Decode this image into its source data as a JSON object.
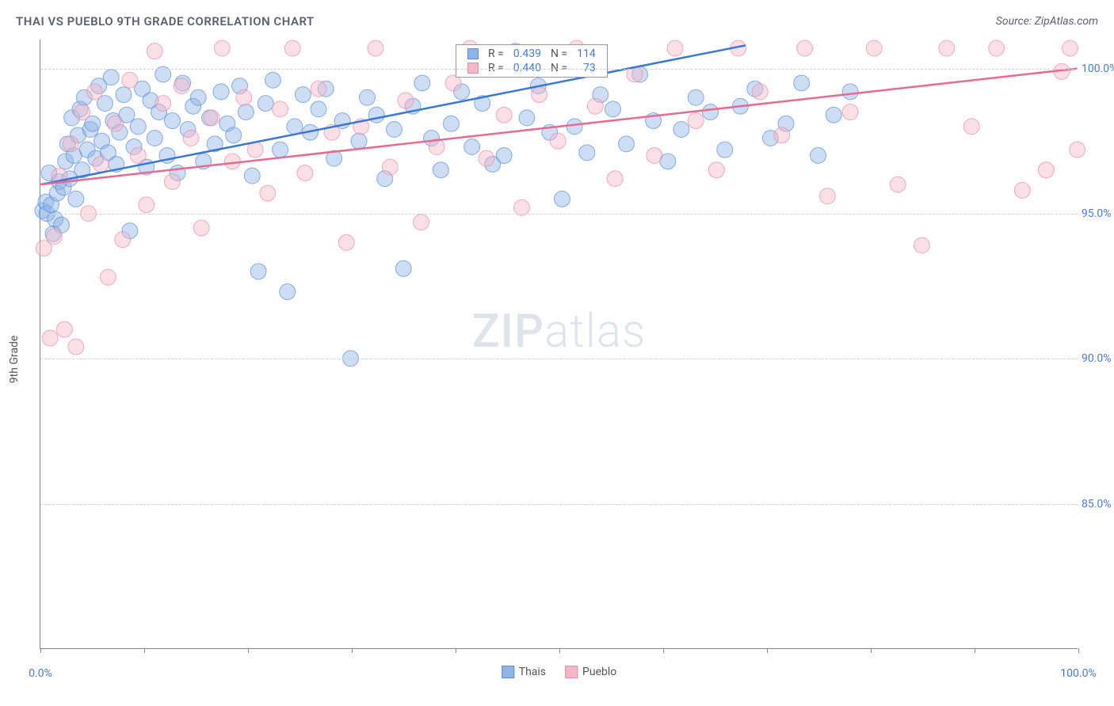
{
  "header": {
    "title": "THAI VS PUEBLO 9TH GRADE CORRELATION CHART",
    "source": "Source: ZipAtlas.com"
  },
  "watermark": {
    "bold": "ZIP",
    "light": "atlas"
  },
  "chart": {
    "type": "scatter",
    "y_axis_title": "9th Grade",
    "xlim": [
      0,
      100
    ],
    "ylim": [
      80,
      101
    ],
    "x_ticks": [
      0,
      10,
      20,
      30,
      40,
      50,
      60,
      70,
      80,
      90,
      100
    ],
    "x_tick_labels": {
      "0": "0.0%",
      "100": "100.0%"
    },
    "y_ticks": [
      85,
      90,
      95,
      100
    ],
    "y_tick_labels": {
      "85": "85.0%",
      "90": "90.0%",
      "95": "95.0%",
      "100": "100.0%"
    },
    "grid_color": "#d0d0d0",
    "background_color": "#ffffff",
    "marker_radius": 10,
    "marker_opacity": 0.45,
    "line_width": 2.5,
    "series": [
      {
        "name": "Thais",
        "fill_color": "#8fb4e6",
        "stroke_color": "#5a8fd8",
        "line_color": "#3a78d8",
        "R": "0.439",
        "N": "114",
        "trend": {
          "x1": 0,
          "y1": 96.0,
          "x2": 68,
          "y2": 100.8
        },
        "points": [
          [
            0.2,
            95.1
          ],
          [
            0.5,
            95.4
          ],
          [
            0.6,
            95.0
          ],
          [
            0.8,
            96.4
          ],
          [
            1.0,
            95.3
          ],
          [
            1.2,
            94.3
          ],
          [
            1.4,
            94.8
          ],
          [
            1.6,
            95.7
          ],
          [
            1.8,
            96.1
          ],
          [
            2.0,
            94.6
          ],
          [
            2.2,
            95.9
          ],
          [
            2.4,
            96.8
          ],
          [
            2.6,
            97.4
          ],
          [
            2.8,
            96.2
          ],
          [
            3.0,
            98.3
          ],
          [
            3.2,
            97.0
          ],
          [
            3.4,
            95.5
          ],
          [
            3.6,
            97.7
          ],
          [
            3.8,
            98.6
          ],
          [
            4.0,
            96.5
          ],
          [
            4.2,
            99.0
          ],
          [
            4.5,
            97.2
          ],
          [
            4.8,
            97.9
          ],
          [
            5.0,
            98.1
          ],
          [
            5.3,
            96.9
          ],
          [
            5.6,
            99.4
          ],
          [
            5.9,
            97.5
          ],
          [
            6.2,
            98.8
          ],
          [
            6.5,
            97.1
          ],
          [
            6.8,
            99.7
          ],
          [
            7.0,
            98.2
          ],
          [
            7.3,
            96.7
          ],
          [
            7.6,
            97.8
          ],
          [
            8.0,
            99.1
          ],
          [
            8.3,
            98.4
          ],
          [
            8.6,
            94.4
          ],
          [
            9.0,
            97.3
          ],
          [
            9.4,
            98.0
          ],
          [
            9.8,
            99.3
          ],
          [
            10.2,
            96.6
          ],
          [
            10.6,
            98.9
          ],
          [
            11.0,
            97.6
          ],
          [
            11.4,
            98.5
          ],
          [
            11.8,
            99.8
          ],
          [
            12.2,
            97.0
          ],
          [
            12.7,
            98.2
          ],
          [
            13.2,
            96.4
          ],
          [
            13.7,
            99.5
          ],
          [
            14.2,
            97.9
          ],
          [
            14.7,
            98.7
          ],
          [
            15.2,
            99.0
          ],
          [
            15.7,
            96.8
          ],
          [
            16.3,
            98.3
          ],
          [
            16.8,
            97.4
          ],
          [
            17.4,
            99.2
          ],
          [
            18.0,
            98.1
          ],
          [
            18.6,
            97.7
          ],
          [
            19.2,
            99.4
          ],
          [
            19.8,
            98.5
          ],
          [
            20.4,
            96.3
          ],
          [
            21.0,
            93.0
          ],
          [
            21.7,
            98.8
          ],
          [
            22.4,
            99.6
          ],
          [
            23.1,
            97.2
          ],
          [
            23.8,
            92.3
          ],
          [
            24.5,
            98.0
          ],
          [
            25.3,
            99.1
          ],
          [
            26.0,
            97.8
          ],
          [
            26.8,
            98.6
          ],
          [
            27.5,
            99.3
          ],
          [
            28.3,
            96.9
          ],
          [
            29.1,
            98.2
          ],
          [
            29.9,
            90.0
          ],
          [
            30.7,
            97.5
          ],
          [
            31.5,
            99.0
          ],
          [
            32.4,
            98.4
          ],
          [
            33.2,
            96.2
          ],
          [
            34.1,
            97.9
          ],
          [
            35.0,
            93.1
          ],
          [
            35.9,
            98.7
          ],
          [
            36.8,
            99.5
          ],
          [
            37.7,
            97.6
          ],
          [
            38.6,
            96.5
          ],
          [
            39.6,
            98.1
          ],
          [
            40.6,
            99.2
          ],
          [
            41.6,
            97.3
          ],
          [
            42.6,
            98.8
          ],
          [
            43.6,
            96.7
          ],
          [
            44.7,
            97.0
          ],
          [
            45.8,
            100.6
          ],
          [
            46.9,
            98.3
          ],
          [
            48.0,
            99.4
          ],
          [
            49.1,
            97.8
          ],
          [
            50.3,
            95.5
          ],
          [
            51.5,
            98.0
          ],
          [
            52.7,
            97.1
          ],
          [
            54.0,
            99.1
          ],
          [
            55.2,
            98.6
          ],
          [
            56.5,
            97.4
          ],
          [
            57.8,
            99.8
          ],
          [
            59.1,
            98.2
          ],
          [
            60.5,
            96.8
          ],
          [
            61.8,
            97.9
          ],
          [
            63.2,
            99.0
          ],
          [
            64.6,
            98.5
          ],
          [
            66.0,
            97.2
          ],
          [
            67.5,
            98.7
          ],
          [
            68.9,
            99.3
          ],
          [
            70.4,
            97.6
          ],
          [
            71.9,
            98.1
          ],
          [
            73.4,
            99.5
          ],
          [
            75.0,
            97.0
          ],
          [
            76.5,
            98.4
          ],
          [
            78.1,
            99.2
          ]
        ]
      },
      {
        "name": "Pueblo",
        "fill_color": "#f5b8c8",
        "stroke_color": "#e88ba5",
        "line_color": "#e86b8f",
        "R": "0.440",
        "N": "73",
        "trend": {
          "x1": 0,
          "y1": 96.0,
          "x2": 100,
          "y2": 100.0
        },
        "points": [
          [
            0.3,
            93.8
          ],
          [
            0.9,
            90.7
          ],
          [
            1.3,
            94.2
          ],
          [
            1.8,
            96.3
          ],
          [
            2.3,
            91.0
          ],
          [
            2.9,
            97.4
          ],
          [
            3.4,
            90.4
          ],
          [
            4.0,
            98.5
          ],
          [
            4.6,
            95.0
          ],
          [
            5.2,
            99.2
          ],
          [
            5.8,
            96.7
          ],
          [
            6.5,
            92.8
          ],
          [
            7.2,
            98.1
          ],
          [
            7.9,
            94.1
          ],
          [
            8.6,
            99.6
          ],
          [
            9.4,
            97.0
          ],
          [
            10.2,
            95.3
          ],
          [
            11.0,
            100.6
          ],
          [
            11.8,
            98.8
          ],
          [
            12.7,
            96.1
          ],
          [
            13.6,
            99.4
          ],
          [
            14.5,
            97.6
          ],
          [
            15.5,
            94.5
          ],
          [
            16.5,
            98.3
          ],
          [
            17.5,
            100.7
          ],
          [
            18.5,
            96.8
          ],
          [
            19.6,
            99.0
          ],
          [
            20.7,
            97.2
          ],
          [
            21.9,
            95.7
          ],
          [
            23.1,
            98.6
          ],
          [
            24.3,
            100.7
          ],
          [
            25.5,
            96.4
          ],
          [
            26.8,
            99.3
          ],
          [
            28.1,
            97.8
          ],
          [
            29.5,
            94.0
          ],
          [
            30.9,
            98.0
          ],
          [
            32.3,
            100.7
          ],
          [
            33.7,
            96.6
          ],
          [
            35.2,
            98.9
          ],
          [
            36.7,
            94.7
          ],
          [
            38.2,
            97.3
          ],
          [
            39.8,
            99.5
          ],
          [
            41.4,
            100.7
          ],
          [
            43.0,
            96.9
          ],
          [
            44.7,
            98.4
          ],
          [
            46.4,
            95.2
          ],
          [
            48.1,
            99.1
          ],
          [
            49.9,
            97.5
          ],
          [
            51.7,
            100.7
          ],
          [
            53.5,
            98.7
          ],
          [
            55.4,
            96.2
          ],
          [
            57.3,
            99.8
          ],
          [
            59.2,
            97.0
          ],
          [
            61.2,
            100.7
          ],
          [
            63.2,
            98.2
          ],
          [
            65.2,
            96.5
          ],
          [
            67.3,
            100.7
          ],
          [
            69.4,
            99.2
          ],
          [
            71.5,
            97.7
          ],
          [
            73.7,
            100.7
          ],
          [
            75.9,
            95.6
          ],
          [
            78.1,
            98.5
          ],
          [
            80.4,
            100.7
          ],
          [
            82.7,
            96.0
          ],
          [
            85.0,
            93.9
          ],
          [
            87.4,
            100.7
          ],
          [
            89.8,
            98.0
          ],
          [
            92.2,
            100.7
          ],
          [
            94.7,
            95.8
          ],
          [
            97.0,
            96.5
          ],
          [
            98.5,
            99.9
          ],
          [
            99.3,
            100.7
          ],
          [
            100.0,
            97.2
          ]
        ]
      }
    ],
    "bottom_legend": [
      {
        "label": "Thais",
        "fill": "#8fb4e6",
        "stroke": "#5a8fd8"
      },
      {
        "label": "Pueblo",
        "fill": "#f5b8c8",
        "stroke": "#e88ba5"
      }
    ]
  },
  "top_legend": {
    "r_prefix": "R =",
    "n_prefix": "N ="
  }
}
